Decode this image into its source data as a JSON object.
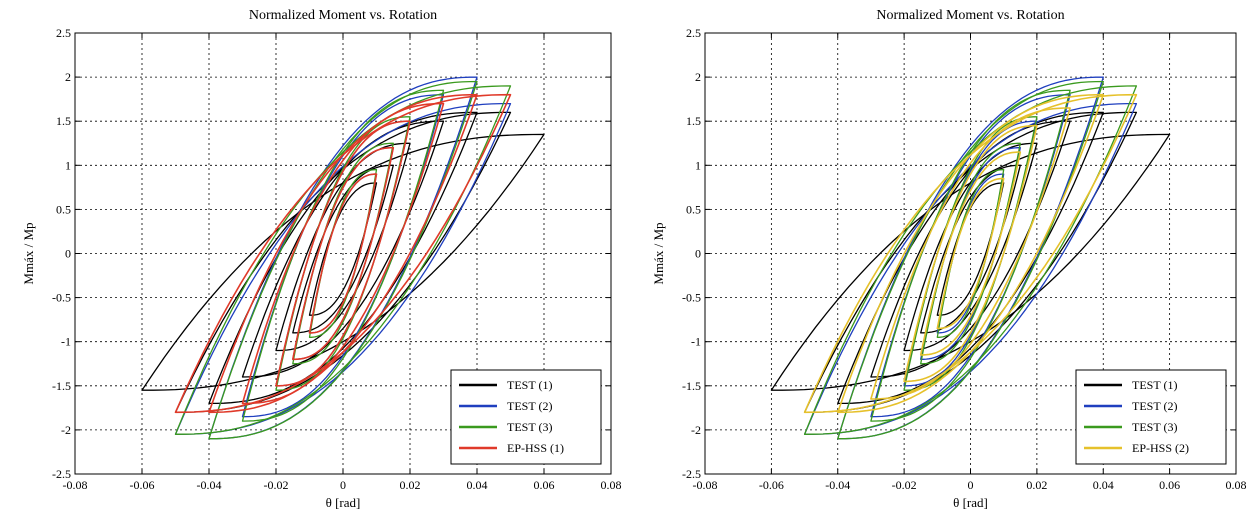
{
  "chart_data": [
    {
      "type": "line",
      "title": "Normalized Moment vs. Rotation",
      "xlabel": "θ [rad]",
      "ylabel": "Mmáx / Mp",
      "xlim": [
        -0.08,
        0.08
      ],
      "ylim": [
        -2.5,
        2.5
      ],
      "xticks": [
        "-0.08",
        "-0.06",
        "-0.04",
        "-0.02",
        "0",
        "0.02",
        "0.04",
        "0.06",
        "0.08"
      ],
      "yticks": [
        "2.5",
        "2",
        "1.5",
        "1",
        "0.5",
        "0",
        "-0.5",
        "-1",
        "-1.5",
        "-2",
        "-2.5"
      ],
      "grid": true,
      "legend_position": "bottom-right",
      "series": [
        {
          "name": "TEST (1)",
          "color": "#000000",
          "amplitudes": [
            0.01,
            0.015,
            0.02,
            0.03,
            0.04,
            0.05,
            0.06
          ],
          "mpos": [
            0.8,
            1.0,
            1.25,
            1.5,
            1.6,
            1.6,
            1.35
          ],
          "mneg": [
            -0.7,
            -0.9,
            -1.1,
            -1.4,
            -1.7,
            -1.8,
            -1.55
          ]
        },
        {
          "name": "TEST (2)",
          "color": "#1f3fbf",
          "amplitudes": [
            0.01,
            0.015,
            0.02,
            0.03,
            0.04,
            0.05
          ],
          "mpos": [
            0.9,
            1.2,
            1.5,
            1.8,
            2.0,
            1.7
          ],
          "mneg": [
            -0.9,
            -1.2,
            -1.5,
            -1.85,
            -2.1,
            -2.05
          ]
        },
        {
          "name": "TEST (3)",
          "color": "#3a9a1e",
          "amplitudes": [
            0.01,
            0.015,
            0.02,
            0.03,
            0.04,
            0.05
          ],
          "mpos": [
            0.95,
            1.25,
            1.55,
            1.85,
            1.95,
            1.9
          ],
          "mneg": [
            -0.95,
            -1.25,
            -1.55,
            -1.9,
            -2.1,
            -2.05
          ]
        },
        {
          "name": "EP-HSS (1)",
          "color": "#e03a2a",
          "amplitudes": [
            0.01,
            0.015,
            0.02,
            0.03,
            0.04,
            0.05
          ],
          "mpos": [
            0.9,
            1.2,
            1.5,
            1.7,
            1.8,
            1.8
          ],
          "mneg": [
            -0.9,
            -1.2,
            -1.5,
            -1.7,
            -1.8,
            -1.8
          ]
        }
      ]
    },
    {
      "type": "line",
      "title": "Normalized Moment vs. Rotation",
      "xlabel": "θ [rad]",
      "ylabel": "Mmáx / Mp",
      "xlim": [
        -0.08,
        0.08
      ],
      "ylim": [
        -2.5,
        2.5
      ],
      "xticks": [
        "-0.08",
        "-0.06",
        "-0.04",
        "-0.02",
        "0",
        "0.02",
        "0.04",
        "0.06",
        "0.08"
      ],
      "yticks": [
        "2.5",
        "2",
        "1.5",
        "1",
        "0.5",
        "0",
        "-0.5",
        "-1",
        "-1.5",
        "-2",
        "-2.5"
      ],
      "grid": true,
      "legend_position": "bottom-right",
      "series": [
        {
          "name": "TEST (1)",
          "color": "#000000",
          "amplitudes": [
            0.01,
            0.015,
            0.02,
            0.03,
            0.04,
            0.05,
            0.06
          ],
          "mpos": [
            0.8,
            1.0,
            1.25,
            1.5,
            1.6,
            1.6,
            1.35
          ],
          "mneg": [
            -0.7,
            -0.9,
            -1.1,
            -1.4,
            -1.7,
            -1.8,
            -1.55
          ]
        },
        {
          "name": "TEST (2)",
          "color": "#1f3fbf",
          "amplitudes": [
            0.01,
            0.015,
            0.02,
            0.03,
            0.04,
            0.05
          ],
          "mpos": [
            0.9,
            1.2,
            1.5,
            1.8,
            2.0,
            1.7
          ],
          "mneg": [
            -0.9,
            -1.2,
            -1.5,
            -1.85,
            -2.1,
            -2.05
          ]
        },
        {
          "name": "TEST (3)",
          "color": "#3a9a1e",
          "amplitudes": [
            0.01,
            0.015,
            0.02,
            0.03,
            0.04,
            0.05
          ],
          "mpos": [
            0.95,
            1.25,
            1.55,
            1.85,
            1.95,
            1.9
          ],
          "mneg": [
            -0.95,
            -1.25,
            -1.55,
            -1.9,
            -2.1,
            -2.05
          ]
        },
        {
          "name": "EP-HSS (2)",
          "color": "#e6c12b",
          "amplitudes": [
            0.01,
            0.015,
            0.02,
            0.03,
            0.04,
            0.05
          ],
          "mpos": [
            0.85,
            1.15,
            1.45,
            1.65,
            1.8,
            1.8
          ],
          "mneg": [
            -0.85,
            -1.15,
            -1.45,
            -1.65,
            -1.8,
            -1.8
          ]
        }
      ]
    }
  ]
}
